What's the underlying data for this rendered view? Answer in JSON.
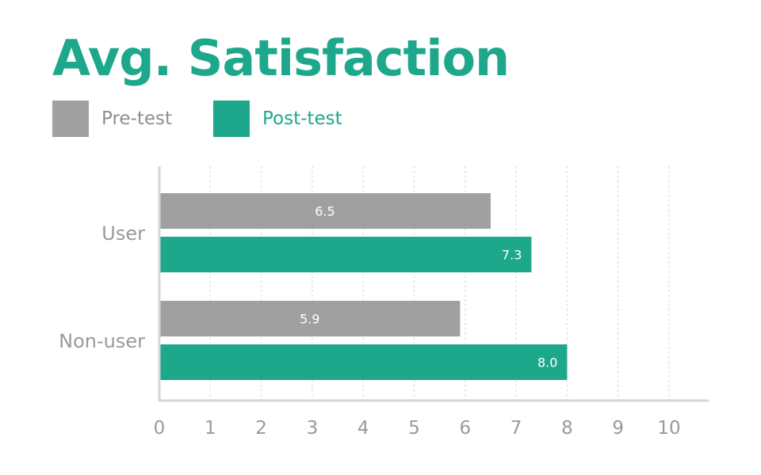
{
  "colors": {
    "accent": "#1ea88b",
    "pre": "#a0a0a0",
    "post": "#1ea88b",
    "axis": "#d6d6d6",
    "grid": "#e4e4e4",
    "tick": "#9a9a9a",
    "value_label": "#ffffff"
  },
  "chart_data": {
    "type": "bar",
    "orientation": "horizontal",
    "title": "Avg. Satisfaction",
    "categories": [
      "User",
      "Non-user"
    ],
    "series": [
      {
        "name": "Pre-test",
        "values": [
          6.5,
          5.9
        ]
      },
      {
        "name": "Post-test",
        "values": [
          7.3,
          8.0
        ]
      }
    ],
    "value_labels": [
      [
        "6.5",
        "5.9"
      ],
      [
        "7.3",
        "8.0"
      ]
    ],
    "xlim": [
      0,
      10
    ],
    "xticks": [
      "0",
      "1",
      "2",
      "3",
      "4",
      "5",
      "6",
      "7",
      "8",
      "9",
      "10"
    ],
    "grid": "vertical dashed",
    "legend": "top-left"
  }
}
